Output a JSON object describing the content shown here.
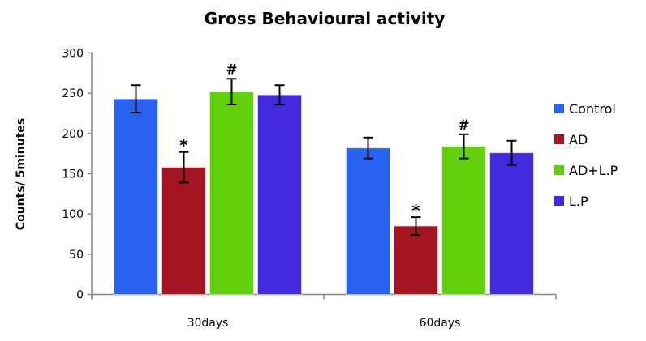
{
  "chart_data": {
    "type": "bar",
    "title": "Gross Behavioural activity",
    "xlabel": "",
    "ylabel": "Counts/ 5minutes",
    "ylim": [
      0,
      300
    ],
    "yticks": [
      0,
      50,
      100,
      150,
      200,
      250,
      300
    ],
    "categories": [
      "30days",
      "60days"
    ],
    "legend_position": "right",
    "grid": false,
    "series": [
      {
        "name": "Control",
        "color": "#2962f0",
        "values": [
          243,
          182
        ],
        "errors": [
          17,
          13
        ],
        "annotations": [
          "",
          ""
        ]
      },
      {
        "name": "AD",
        "color": "#a31621",
        "values": [
          158,
          85
        ],
        "errors": [
          19,
          11
        ],
        "annotations": [
          "*",
          "*"
        ]
      },
      {
        "name": "AD+L.P",
        "color": "#62d10c",
        "values": [
          252,
          184
        ],
        "errors": [
          16,
          15
        ],
        "annotations": [
          "#",
          "#"
        ]
      },
      {
        "name": "L.P",
        "color": "#4129dd",
        "values": [
          248,
          176
        ],
        "errors": [
          12,
          15
        ],
        "annotations": [
          "",
          ""
        ]
      }
    ]
  }
}
